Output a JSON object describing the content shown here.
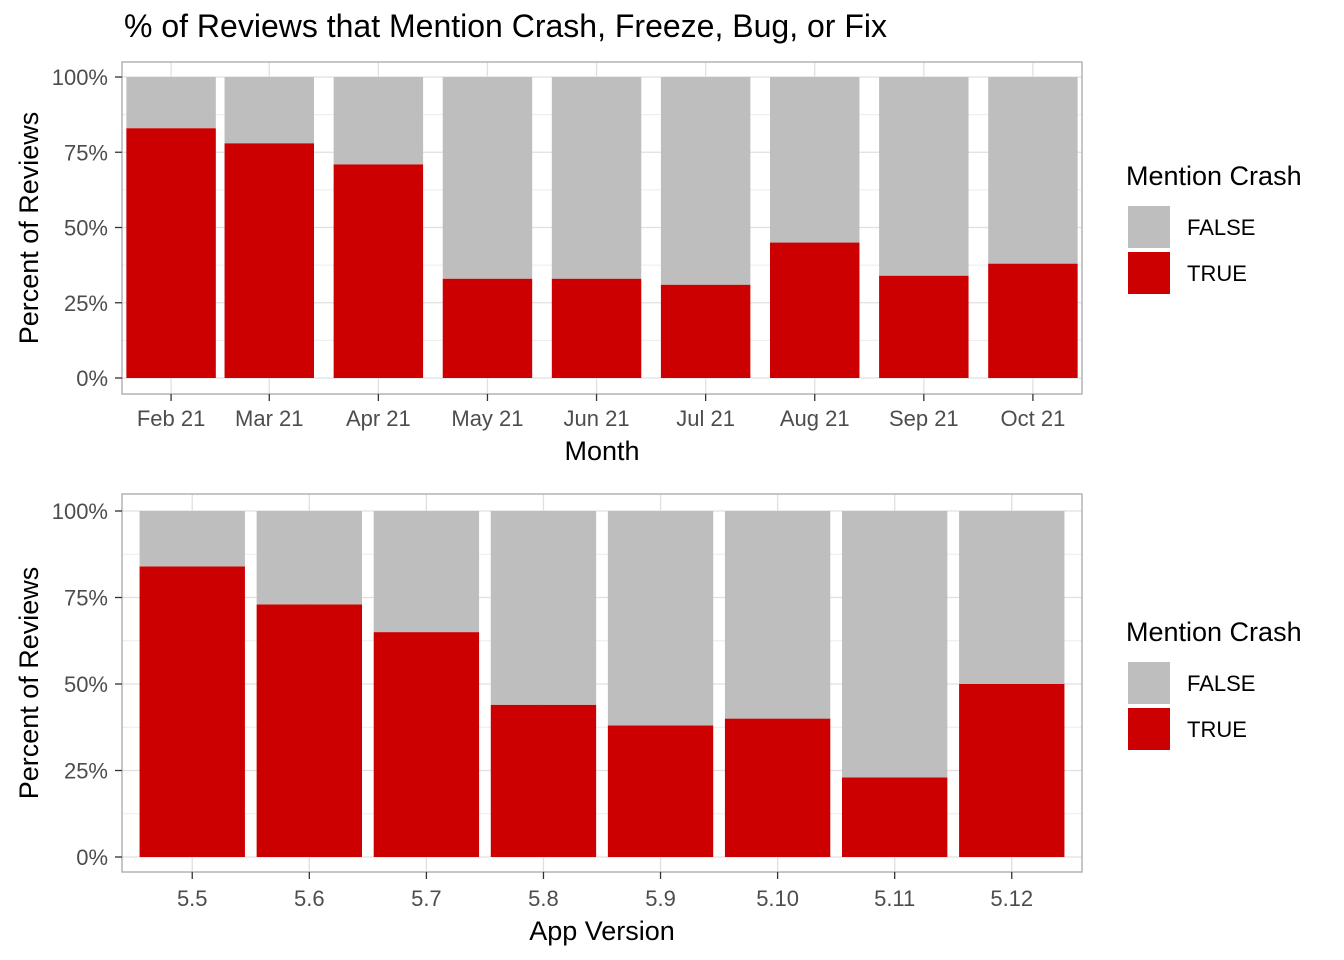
{
  "title": "% of Reviews that Mention Crash, Freeze, Bug, or Fix",
  "colors": {
    "TRUE": "#cc0000",
    "FALSE": "#bebebe",
    "grid": "#e0e0e0",
    "panel_border": "#b3b3b3"
  },
  "chart_data": [
    {
      "type": "bar",
      "stacked": "percent",
      "xlabel": "Month",
      "ylabel": "Percent of Reviews",
      "ylim": [
        0,
        100
      ],
      "yticks": [
        "0%",
        "25%",
        "50%",
        "75%",
        "100%"
      ],
      "categories": [
        "Feb 21",
        "Mar 21",
        "Apr 21",
        "May 21",
        "Jun 21",
        "Jul 21",
        "Aug 21",
        "Sep 21",
        "Oct 21"
      ],
      "category_x": [
        1,
        1.9,
        2.9,
        3.9,
        4.9,
        5.9,
        6.9,
        7.9,
        8.9
      ],
      "bar_width": 0.82,
      "xlim": [
        0.55,
        9.35
      ],
      "series": [
        {
          "name": "FALSE",
          "values": [
            17,
            22,
            29,
            67,
            67,
            69,
            55,
            66,
            62
          ]
        },
        {
          "name": "TRUE",
          "values": [
            83,
            78,
            71,
            33,
            33,
            31,
            45,
            34,
            38
          ]
        }
      ],
      "legend": {
        "title": "Mention Crash",
        "entries": [
          "FALSE",
          "TRUE"
        ],
        "position": "right"
      },
      "grid": true
    },
    {
      "type": "bar",
      "stacked": "percent",
      "xlabel": "App Version",
      "ylabel": "Percent of Reviews",
      "ylim": [
        0,
        100
      ],
      "yticks": [
        "0%",
        "25%",
        "50%",
        "75%",
        "100%"
      ],
      "categories": [
        "5.5",
        "5.6",
        "5.7",
        "5.8",
        "5.9",
        "5.10",
        "5.11",
        "5.12"
      ],
      "category_x": [
        1,
        2,
        3,
        4,
        5,
        6,
        7,
        8
      ],
      "bar_width": 0.9,
      "xlim": [
        0.4,
        8.6
      ],
      "series": [
        {
          "name": "FALSE",
          "values": [
            16,
            27,
            35,
            56,
            62,
            60,
            77,
            50
          ]
        },
        {
          "name": "TRUE",
          "values": [
            84,
            73,
            65,
            44,
            38,
            40,
            23,
            50
          ]
        }
      ],
      "legend": {
        "title": "Mention Crash",
        "entries": [
          "FALSE",
          "TRUE"
        ],
        "position": "right"
      },
      "grid": true
    }
  ]
}
